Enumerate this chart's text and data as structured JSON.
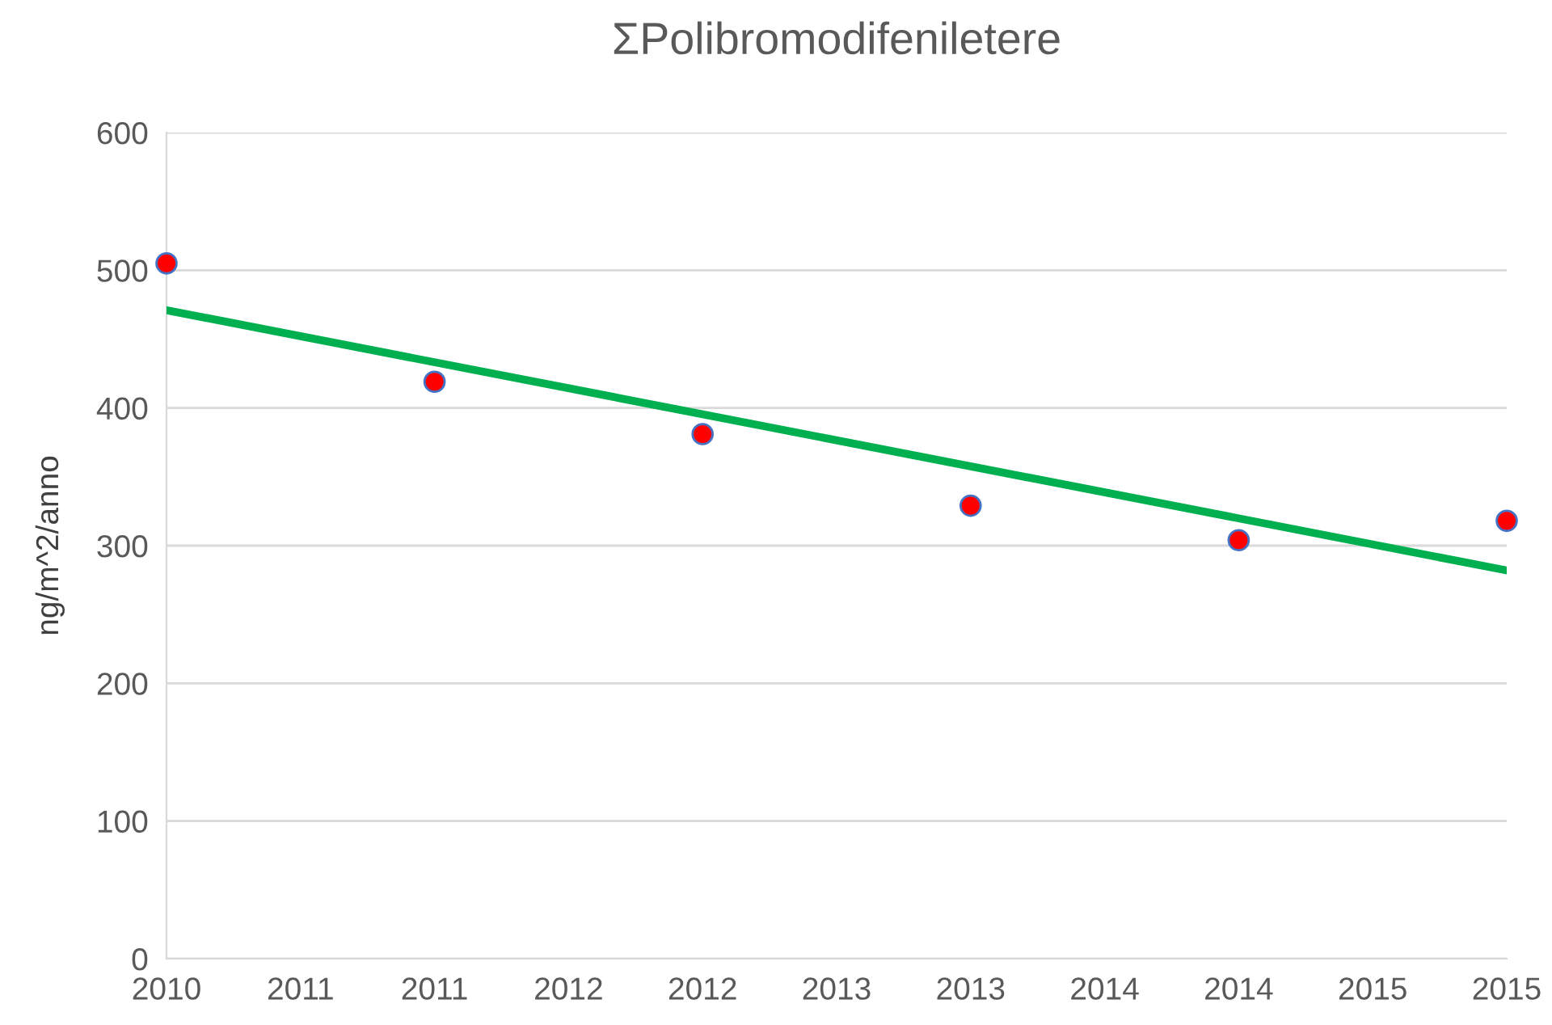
{
  "chart_data": {
    "type": "scatter",
    "title": "ΣPolibromodifeniletere",
    "ylabel": "ng/m^2/anno",
    "series": [
      {
        "type": "scatter",
        "color": "#ff0000",
        "marker": "circle",
        "x": [
          2010,
          2011,
          2012,
          2013,
          2014,
          2015
        ],
        "values": [
          505,
          419,
          381,
          329,
          304,
          318
        ]
      },
      {
        "type": "line",
        "color": "#00b050",
        "marker": "none",
        "line_style": "solid",
        "x": [
          2010,
          2015
        ],
        "values": [
          471,
          282
        ]
      }
    ],
    "xlim": [
      2010,
      2015
    ],
    "xticks": [
      {
        "value": 2010,
        "label": "2010"
      },
      {
        "value": 2010.5,
        "label": "2011"
      },
      {
        "value": 2011,
        "label": "2011"
      },
      {
        "value": 2011.5,
        "label": "2012"
      },
      {
        "value": 2012,
        "label": "2012"
      },
      {
        "value": 2012.5,
        "label": "2013"
      },
      {
        "value": 2013,
        "label": "2013"
      },
      {
        "value": 2013.5,
        "label": "2014"
      },
      {
        "value": 2014,
        "label": "2014"
      },
      {
        "value": 2014.5,
        "label": "2015"
      },
      {
        "value": 2015,
        "label": "2015"
      }
    ],
    "ylim": [
      0,
      600
    ],
    "yticks": [
      0,
      100,
      200,
      300,
      400,
      500,
      600
    ],
    "grid": "y",
    "legend": false
  }
}
